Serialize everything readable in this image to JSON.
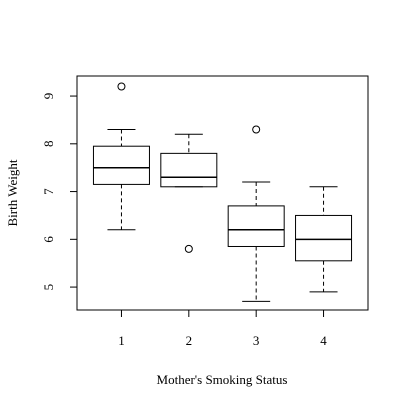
{
  "chart_data": {
    "type": "boxplot",
    "x_label": "Mother's Smoking Status",
    "y_label": "Birth Weight",
    "categories": [
      "1",
      "2",
      "3",
      "4"
    ],
    "boxes": [
      {
        "min": 6.2,
        "q1": 7.15,
        "median": 7.5,
        "q3": 7.95,
        "max": 8.3,
        "outliers": [
          9.2
        ]
      },
      {
        "min": 7.1,
        "q1": 7.1,
        "median": 7.3,
        "q3": 7.8,
        "max": 8.2,
        "outliers": [
          5.8
        ]
      },
      {
        "min": 4.7,
        "q1": 5.85,
        "median": 6.2,
        "q3": 6.7,
        "max": 7.2,
        "outliers": [
          8.3
        ]
      },
      {
        "min": 4.9,
        "q1": 5.55,
        "median": 6.0,
        "q3": 6.5,
        "max": 7.1,
        "outliers": []
      }
    ],
    "ylim": [
      4.52,
      9.42
    ],
    "yticks": [
      5,
      6,
      7,
      8,
      9
    ],
    "color": "#000000"
  }
}
